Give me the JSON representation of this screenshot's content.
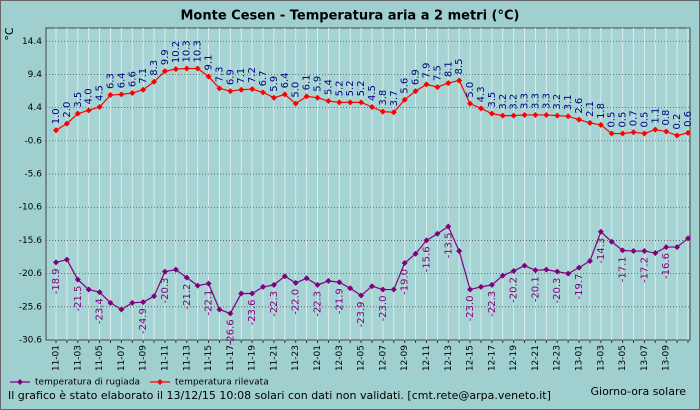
{
  "chart_data": {
    "type": "line",
    "title": "Monte Cesen - Temperatura aria a 2 metri (°C)",
    "y_label": "°C",
    "x_label": "Giorno-ora solare",
    "footnote": "Il grafico è stato elaborato il 13/12/15 10:08 solari con dati non validati. [cmt.rete@arpa.veneto.it]",
    "categories": [
      "11-01",
      null,
      "11-03",
      null,
      "11-05",
      null,
      "11-07",
      null,
      "11-09",
      null,
      "11-11",
      null,
      "11-13",
      null,
      "11-15",
      null,
      "11-17",
      null,
      "11-19",
      null,
      "11-21",
      null,
      "11-23",
      null,
      "12-01",
      null,
      "12-03",
      null,
      "12-05",
      null,
      "12-07",
      null,
      "12-09",
      null,
      "12-11",
      null,
      "12-13",
      null,
      "12-15",
      null,
      "12-17",
      null,
      "12-19",
      null,
      "12-21",
      null,
      "12-23",
      null,
      "13-01",
      null,
      "13-03",
      null,
      "13-05",
      null,
      "13-07",
      null,
      "13-09",
      null,
      null
    ],
    "series": [
      {
        "name": "temperatura di rugiada",
        "color": "#800080",
        "label_color": "#800080",
        "label_side": "below",
        "values": [
          -18.9,
          -18.5,
          -21.5,
          -23.0,
          -23.4,
          -25.0,
          -26.0,
          -25.0,
          -24.9,
          -24.0,
          -20.3,
          -20.0,
          -21.2,
          -22.4,
          -22.1,
          -26.0,
          -26.6,
          -23.6,
          -23.6,
          -22.6,
          -22.3,
          -21.0,
          -22.0,
          -21.3,
          -22.3,
          -21.7,
          -21.9,
          -22.8,
          -23.9,
          -22.5,
          -23.0,
          -23.0,
          -19.0,
          -17.6,
          -15.6,
          -14.6,
          -13.5,
          -17.2,
          -23.0,
          -22.6,
          -22.3,
          -20.9,
          -20.2,
          -19.4,
          -20.1,
          -20.0,
          -20.3,
          -20.6,
          -19.7,
          -18.7,
          -14.3,
          -15.8,
          -17.1,
          -17.2,
          -17.2,
          -17.5,
          -16.6,
          -16.6,
          -15.3
        ],
        "value_labels": [
          "-18.9",
          null,
          "-21.5",
          null,
          "-23.4",
          null,
          null,
          null,
          "-24.9",
          null,
          "-20.3",
          null,
          "-21.2",
          null,
          "-22.1",
          null,
          "-26.6",
          null,
          "-23.6",
          null,
          "-22.3",
          null,
          "-22.0",
          null,
          "-22.3",
          null,
          "-21.9",
          null,
          "-23.9",
          null,
          "-23.0",
          null,
          "-19.0",
          null,
          "-15.6",
          null,
          "-13.5",
          null,
          "-23.0",
          null,
          "-22.3",
          null,
          "-20.2",
          null,
          "-20.1",
          null,
          "-20.3",
          null,
          "-19.7",
          null,
          "-14.3",
          null,
          "-17.1",
          null,
          "-17.2",
          null,
          "-16.6",
          null,
          null
        ]
      },
      {
        "name": "temperatura rilevata",
        "color": "#ff0000",
        "label_color": "#000080",
        "label_side": "above",
        "values": [
          1.0,
          2.0,
          3.5,
          4.0,
          4.5,
          6.3,
          6.4,
          6.6,
          7.1,
          8.3,
          9.9,
          10.2,
          10.3,
          10.3,
          9.1,
          7.3,
          6.9,
          7.1,
          7.2,
          6.7,
          5.9,
          6.4,
          5.0,
          6.1,
          5.9,
          5.4,
          5.2,
          5.2,
          5.2,
          4.5,
          3.8,
          3.7,
          5.6,
          6.9,
          7.9,
          7.5,
          8.1,
          8.5,
          5.0,
          4.3,
          3.5,
          3.2,
          3.2,
          3.3,
          3.3,
          3.3,
          3.2,
          3.1,
          2.6,
          2.1,
          1.8,
          0.5,
          0.5,
          0.7,
          0.5,
          1.1,
          0.8,
          0.2,
          0.6
        ],
        "value_labels": [
          "1.0",
          "2.0",
          "3.5",
          "4.0",
          "4.5",
          "6.3",
          "6.4",
          "6.6",
          "7.1",
          "8.3",
          "9.9",
          "10.2",
          "10.3",
          "10.3",
          "9.1",
          "7.3",
          "6.9",
          "7.1",
          "7.2",
          "6.7",
          "5.9",
          "6.4",
          "5.0",
          "6.1",
          "5.9",
          "5.4",
          "5.2",
          "5.2",
          "5.2",
          "4.5",
          "3.8",
          "3.7",
          "5.6",
          "6.9",
          "7.9",
          "7.5",
          "8.1",
          "8.5",
          "5.0",
          "4.3",
          "3.5",
          "3.2",
          "3.2",
          "3.3",
          "3.3",
          "3.3",
          "3.2",
          "3.1",
          "2.6",
          "2.1",
          "1.8",
          "0.5",
          "0.5",
          "0.7",
          "0.5",
          "1.1",
          "0.8",
          "0.2",
          "0.6"
        ]
      }
    ],
    "ylim": [
      -30.6,
      16.4
    ],
    "yticks": [
      -30.6,
      -25.6,
      -20.6,
      -15.6,
      -10.6,
      -5.6,
      -0.6,
      4.4,
      9.4,
      14.4
    ],
    "grid": true,
    "legend": "bottom-left"
  }
}
